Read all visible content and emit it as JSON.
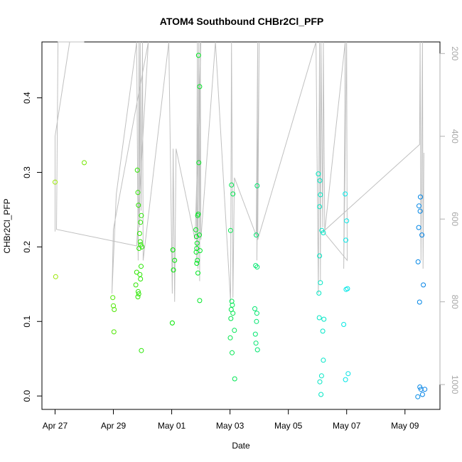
{
  "chart_data": {
    "type": "scatter",
    "title": "ATOM4 Southbound CHBr2Cl_PFP",
    "xlabel": "Date",
    "ylabel": "CHBr2Cl_PFP",
    "x_date_origin": "2018-04-27",
    "xlim": [
      -0.45,
      13.2
    ],
    "ylim": [
      -0.018,
      0.475
    ],
    "y2lim": [
      1060,
      172
    ],
    "x_ticks": [
      {
        "day": 0,
        "label": "Apr 27"
      },
      {
        "day": 2,
        "label": "Apr 29"
      },
      {
        "day": 4,
        "label": "May 01"
      },
      {
        "day": 6,
        "label": "May 03"
      },
      {
        "day": 8,
        "label": "May 05"
      },
      {
        "day": 10,
        "label": "May 07"
      },
      {
        "day": 12,
        "label": "May 09"
      }
    ],
    "y_ticks": [
      "0.0",
      "0.1",
      "0.2",
      "0.3",
      "0.4"
    ],
    "y_tick_values": [
      0.0,
      0.1,
      0.2,
      0.3,
      0.4
    ],
    "y2_ticks": [
      "200",
      "400",
      "600",
      "800",
      "1000"
    ],
    "y2_tick_values": [
      200,
      400,
      600,
      800,
      1000
    ],
    "point_color_scale": "rainbow: yellow-green (Apr 27) to blue (May 09)",
    "points": [
      {
        "day": 0.0,
        "y": 0.287
      },
      {
        "day": 0.02,
        "y": 0.16
      },
      {
        "day": 1.0,
        "y": 0.313
      },
      {
        "day": 1.98,
        "y": 0.132
      },
      {
        "day": 2.0,
        "y": 0.121
      },
      {
        "day": 2.03,
        "y": 0.116
      },
      {
        "day": 2.02,
        "y": 0.086
      },
      {
        "day": 2.77,
        "y": 0.149
      },
      {
        "day": 2.82,
        "y": 0.303
      },
      {
        "day": 2.84,
        "y": 0.273
      },
      {
        "day": 2.86,
        "y": 0.256
      },
      {
        "day": 2.88,
        "y": 0.198
      },
      {
        "day": 2.8,
        "y": 0.166
      },
      {
        "day": 2.85,
        "y": 0.14
      },
      {
        "day": 2.87,
        "y": 0.137
      },
      {
        "day": 2.84,
        "y": 0.133
      },
      {
        "day": 2.9,
        "y": 0.218
      },
      {
        "day": 2.92,
        "y": 0.207
      },
      {
        "day": 2.94,
        "y": 0.203
      },
      {
        "day": 2.96,
        "y": 0.242
      },
      {
        "day": 2.93,
        "y": 0.233
      },
      {
        "day": 2.98,
        "y": 0.2
      },
      {
        "day": 2.95,
        "y": 0.174
      },
      {
        "day": 2.91,
        "y": 0.163
      },
      {
        "day": 2.93,
        "y": 0.157
      },
      {
        "day": 2.96,
        "y": 0.061
      },
      {
        "day": 4.04,
        "y": 0.196
      },
      {
        "day": 4.1,
        "y": 0.182
      },
      {
        "day": 4.06,
        "y": 0.169
      },
      {
        "day": 4.02,
        "y": 0.098
      },
      {
        "day": 4.83,
        "y": 0.223
      },
      {
        "day": 4.85,
        "y": 0.214
      },
      {
        "day": 4.87,
        "y": 0.205
      },
      {
        "day": 4.89,
        "y": 0.242
      },
      {
        "day": 4.91,
        "y": 0.244
      },
      {
        "day": 4.86,
        "y": 0.198
      },
      {
        "day": 4.84,
        "y": 0.193
      },
      {
        "day": 4.88,
        "y": 0.182
      },
      {
        "day": 4.86,
        "y": 0.178
      },
      {
        "day": 4.9,
        "y": 0.165
      },
      {
        "day": 4.92,
        "y": 0.457
      },
      {
        "day": 4.96,
        "y": 0.415
      },
      {
        "day": 4.93,
        "y": 0.313
      },
      {
        "day": 4.95,
        "y": 0.216
      },
      {
        "day": 4.97,
        "y": 0.195
      },
      {
        "day": 4.96,
        "y": 0.128
      },
      {
        "day": 6.05,
        "y": 0.283
      },
      {
        "day": 6.1,
        "y": 0.271
      },
      {
        "day": 6.02,
        "y": 0.222
      },
      {
        "day": 6.06,
        "y": 0.127
      },
      {
        "day": 6.08,
        "y": 0.122
      },
      {
        "day": 6.04,
        "y": 0.116
      },
      {
        "day": 6.1,
        "y": 0.111
      },
      {
        "day": 6.03,
        "y": 0.104
      },
      {
        "day": 6.15,
        "y": 0.088
      },
      {
        "day": 6.01,
        "y": 0.078
      },
      {
        "day": 6.07,
        "y": 0.058
      },
      {
        "day": 6.16,
        "y": 0.023
      },
      {
        "day": 6.93,
        "y": 0.282
      },
      {
        "day": 6.9,
        "y": 0.216
      },
      {
        "day": 6.88,
        "y": 0.175
      },
      {
        "day": 6.93,
        "y": 0.173
      },
      {
        "day": 6.85,
        "y": 0.117
      },
      {
        "day": 6.92,
        "y": 0.111
      },
      {
        "day": 6.91,
        "y": 0.1
      },
      {
        "day": 6.87,
        "y": 0.083
      },
      {
        "day": 6.89,
        "y": 0.071
      },
      {
        "day": 6.94,
        "y": 0.062
      },
      {
        "day": 9.03,
        "y": 0.298
      },
      {
        "day": 9.08,
        "y": 0.289
      },
      {
        "day": 9.1,
        "y": 0.27
      },
      {
        "day": 9.07,
        "y": 0.254
      },
      {
        "day": 9.15,
        "y": 0.222
      },
      {
        "day": 9.2,
        "y": 0.219
      },
      {
        "day": 9.07,
        "y": 0.188
      },
      {
        "day": 9.1,
        "y": 0.152
      },
      {
        "day": 9.05,
        "y": 0.138
      },
      {
        "day": 9.06,
        "y": 0.105
      },
      {
        "day": 9.22,
        "y": 0.103
      },
      {
        "day": 9.18,
        "y": 0.087
      },
      {
        "day": 9.2,
        "y": 0.048
      },
      {
        "day": 9.14,
        "y": 0.027
      },
      {
        "day": 9.08,
        "y": 0.019
      },
      {
        "day": 9.12,
        "y": 0.002
      },
      {
        "day": 9.95,
        "y": 0.271
      },
      {
        "day": 10.0,
        "y": 0.235
      },
      {
        "day": 9.97,
        "y": 0.209
      },
      {
        "day": 9.98,
        "y": 0.143
      },
      {
        "day": 10.03,
        "y": 0.144
      },
      {
        "day": 9.9,
        "y": 0.096
      },
      {
        "day": 10.05,
        "y": 0.03
      },
      {
        "day": 9.96,
        "y": 0.022
      },
      {
        "day": 12.53,
        "y": 0.267
      },
      {
        "day": 12.48,
        "y": 0.255
      },
      {
        "day": 12.52,
        "y": 0.248
      },
      {
        "day": 12.47,
        "y": 0.226
      },
      {
        "day": 12.58,
        "y": 0.216
      },
      {
        "day": 12.45,
        "y": 0.18
      },
      {
        "day": 12.63,
        "y": 0.149
      },
      {
        "day": 12.5,
        "y": 0.126
      },
      {
        "day": 12.51,
        "y": 0.012
      },
      {
        "day": 12.55,
        "y": 0.009
      },
      {
        "day": 12.68,
        "y": 0.009
      },
      {
        "day": 12.6,
        "y": 0.002
      },
      {
        "day": 12.44,
        "y": -0.001
      }
    ],
    "altitude_trace": {
      "color": "#c0c0c0",
      "points": [
        {
          "day": 0.0,
          "y2": 480
        },
        {
          "day": 0.0,
          "y2": 630
        },
        {
          "day": 0.0,
          "y2": 400
        },
        {
          "day": 0.5,
          "y2": 172
        },
        {
          "day": 1.0,
          "y2": 172
        },
        {
          "day": 0.1,
          "y2": 172
        },
        {
          "day": 0.05,
          "y2": 625
        },
        {
          "day": 2.8,
          "y2": 665
        },
        {
          "day": 3.2,
          "y2": 160
        },
        {
          "day": 2.0,
          "y2": 625
        },
        {
          "day": 1.95,
          "y2": 780
        },
        {
          "day": 2.1,
          "y2": 540
        },
        {
          "day": 2.8,
          "y2": 170
        },
        {
          "day": 2.85,
          "y2": 700
        },
        {
          "day": 2.88,
          "y2": 172
        },
        {
          "day": 2.9,
          "y2": 620
        },
        {
          "day": 2.92,
          "y2": 172
        },
        {
          "day": 2.95,
          "y2": 580
        },
        {
          "day": 3.0,
          "y2": 172
        },
        {
          "day": 3.02,
          "y2": 700
        },
        {
          "day": 3.9,
          "y2": 172
        },
        {
          "day": 4.02,
          "y2": 780
        },
        {
          "day": 4.05,
          "y2": 430
        },
        {
          "day": 4.1,
          "y2": 800
        },
        {
          "day": 4.15,
          "y2": 430
        },
        {
          "day": 4.8,
          "y2": 650
        },
        {
          "day": 5.0,
          "y2": 172
        },
        {
          "day": 4.85,
          "y2": 700
        },
        {
          "day": 4.88,
          "y2": 172
        },
        {
          "day": 4.9,
          "y2": 720
        },
        {
          "day": 4.93,
          "y2": 172
        },
        {
          "day": 4.96,
          "y2": 750
        },
        {
          "day": 4.98,
          "y2": 172
        },
        {
          "day": 5.0,
          "y2": 650
        },
        {
          "day": 5.5,
          "y2": 172
        },
        {
          "day": 6.02,
          "y2": 800
        },
        {
          "day": 6.05,
          "y2": 172
        },
        {
          "day": 6.1,
          "y2": 790
        },
        {
          "day": 6.15,
          "y2": 500
        },
        {
          "day": 6.9,
          "y2": 640
        },
        {
          "day": 6.95,
          "y2": 172
        },
        {
          "day": 6.92,
          "y2": 700
        },
        {
          "day": 7.0,
          "y2": 172
        },
        {
          "day": 6.95,
          "y2": 650
        },
        {
          "day": 8.95,
          "y2": 172
        },
        {
          "day": 9.03,
          "y2": 780
        },
        {
          "day": 9.07,
          "y2": 172
        },
        {
          "day": 9.1,
          "y2": 750
        },
        {
          "day": 9.12,
          "y2": 172
        },
        {
          "day": 9.18,
          "y2": 620
        },
        {
          "day": 9.2,
          "y2": 172
        },
        {
          "day": 9.25,
          "y2": 630
        },
        {
          "day": 9.95,
          "y2": 172
        },
        {
          "day": 9.9,
          "y2": 720
        },
        {
          "day": 10.0,
          "y2": 172
        },
        {
          "day": 10.02,
          "y2": 700
        },
        {
          "day": 9.2,
          "y2": 630
        },
        {
          "day": 12.5,
          "y2": 420
        },
        {
          "day": 12.52,
          "y2": 172
        },
        {
          "day": 12.55,
          "y2": 700
        },
        {
          "day": 12.6,
          "y2": 172
        },
        {
          "day": 12.62,
          "y2": 720
        },
        {
          "day": 12.65,
          "y2": 440
        }
      ]
    },
    "grid": false,
    "legend": "none"
  }
}
